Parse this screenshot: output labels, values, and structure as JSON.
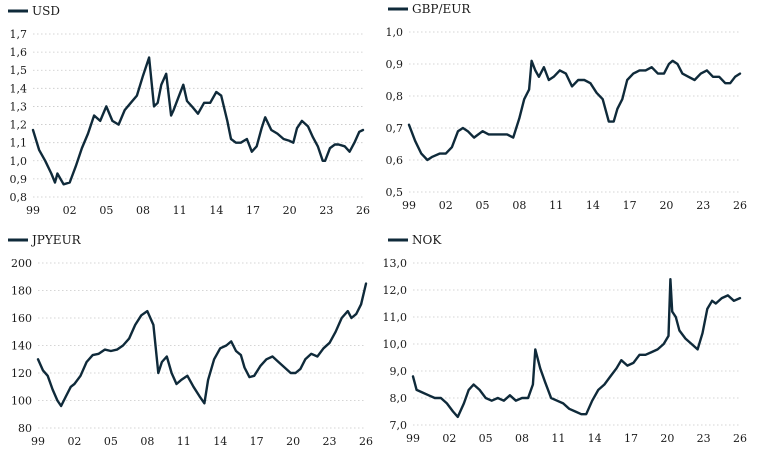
{
  "chart_data": [
    {
      "type": "line",
      "legend": "USD",
      "legend_position": "top-left",
      "grid": "horizontal-dotted",
      "color": "#0f2a3a",
      "xlim": [
        1999,
        2026
      ],
      "ylim": [
        0.8,
        1.7
      ],
      "yticks": [
        "0,8",
        "0,9",
        "1,0",
        "1,1",
        "1,2",
        "1,3",
        "1,4",
        "1,5",
        "1,6",
        "1,7"
      ],
      "xticks": [
        "99",
        "02",
        "05",
        "08",
        "11",
        "14",
        "17",
        "20",
        "23",
        "26"
      ],
      "x": [
        1999.0,
        1999.5,
        2000.0,
        2000.5,
        2000.8,
        2001.0,
        2001.5,
        2002.0,
        2002.5,
        2003.0,
        2003.5,
        2004.0,
        2004.5,
        2005.0,
        2005.5,
        2006.0,
        2006.5,
        2007.0,
        2007.5,
        2008.0,
        2008.5,
        2008.9,
        2009.2,
        2009.5,
        2009.9,
        2010.3,
        2010.5,
        2010.9,
        2011.3,
        2011.6,
        2012.0,
        2012.5,
        2013.0,
        2013.5,
        2014.0,
        2014.4,
        2014.9,
        2015.2,
        2015.6,
        2016.0,
        2016.5,
        2016.9,
        2017.3,
        2017.7,
        2018.0,
        2018.5,
        2019.0,
        2019.5,
        2020.0,
        2020.3,
        2020.6,
        2021.0,
        2021.5,
        2021.9,
        2022.3,
        2022.7,
        2022.9,
        2023.3,
        2023.7,
        2024.0,
        2024.5,
        2024.9,
        2025.3,
        2025.7,
        2026.0
      ],
      "y": [
        1.17,
        1.06,
        1.0,
        0.93,
        0.88,
        0.93,
        0.87,
        0.88,
        0.97,
        1.07,
        1.15,
        1.25,
        1.22,
        1.3,
        1.22,
        1.2,
        1.28,
        1.32,
        1.36,
        1.47,
        1.57,
        1.3,
        1.32,
        1.42,
        1.48,
        1.25,
        1.28,
        1.35,
        1.42,
        1.33,
        1.3,
        1.26,
        1.32,
        1.32,
        1.38,
        1.36,
        1.22,
        1.12,
        1.1,
        1.1,
        1.12,
        1.05,
        1.08,
        1.18,
        1.24,
        1.17,
        1.15,
        1.12,
        1.11,
        1.1,
        1.18,
        1.22,
        1.19,
        1.13,
        1.08,
        1.0,
        1.0,
        1.07,
        1.09,
        1.09,
        1.08,
        1.05,
        1.1,
        1.16,
        1.17
      ]
    },
    {
      "type": "line",
      "legend": "GBP/EUR",
      "legend_position": "top-left",
      "grid": "horizontal-dotted",
      "color": "#0f2a3a",
      "xlim": [
        1999,
        2026
      ],
      "ylim": [
        0.5,
        1.0
      ],
      "yticks": [
        "0,5",
        "0,6",
        "0,7",
        "0,8",
        "0,9",
        "1,0"
      ],
      "xticks": [
        "99",
        "02",
        "05",
        "08",
        "11",
        "14",
        "17",
        "20",
        "23",
        "26"
      ],
      "x": [
        1999.0,
        1999.5,
        2000.0,
        2000.5,
        2000.9,
        2001.5,
        2002.0,
        2002.5,
        2003.0,
        2003.4,
        2003.8,
        2004.3,
        2005.0,
        2005.5,
        2006.0,
        2006.5,
        2007.0,
        2007.5,
        2008.0,
        2008.4,
        2008.8,
        2009.0,
        2009.3,
        2009.6,
        2010.0,
        2010.4,
        2010.8,
        2011.3,
        2011.8,
        2012.3,
        2012.8,
        2013.3,
        2013.8,
        2014.3,
        2014.8,
        2015.3,
        2015.7,
        2016.0,
        2016.4,
        2016.8,
        2017.3,
        2017.8,
        2018.3,
        2018.8,
        2019.3,
        2019.8,
        2020.2,
        2020.5,
        2020.9,
        2021.3,
        2021.8,
        2022.3,
        2022.8,
        2023.3,
        2023.8,
        2024.3,
        2024.8,
        2025.2,
        2025.6,
        2026.0
      ],
      "y": [
        0.71,
        0.66,
        0.62,
        0.6,
        0.61,
        0.62,
        0.62,
        0.64,
        0.69,
        0.7,
        0.69,
        0.67,
        0.69,
        0.68,
        0.68,
        0.68,
        0.68,
        0.67,
        0.73,
        0.79,
        0.82,
        0.91,
        0.88,
        0.86,
        0.89,
        0.85,
        0.86,
        0.88,
        0.87,
        0.83,
        0.85,
        0.85,
        0.84,
        0.81,
        0.79,
        0.72,
        0.72,
        0.76,
        0.79,
        0.85,
        0.87,
        0.88,
        0.88,
        0.89,
        0.87,
        0.87,
        0.9,
        0.91,
        0.9,
        0.87,
        0.86,
        0.85,
        0.87,
        0.88,
        0.86,
        0.86,
        0.84,
        0.84,
        0.86,
        0.87
      ]
    },
    {
      "type": "line",
      "legend": "JPYEUR",
      "legend_position": "top-left",
      "grid": "horizontal-dotted",
      "color": "#0f2a3a",
      "xlim": [
        1999,
        2026
      ],
      "ylim": [
        80,
        200
      ],
      "yticks": [
        "80",
        "100",
        "120",
        "140",
        "160",
        "180",
        "200"
      ],
      "xticks": [
        "99",
        "02",
        "05",
        "08",
        "11",
        "14",
        "17",
        "20",
        "23",
        "26"
      ],
      "x": [
        1999.0,
        1999.4,
        1999.8,
        2000.2,
        2000.6,
        2000.9,
        2001.3,
        2001.7,
        2002.0,
        2002.5,
        2003.0,
        2003.5,
        2004.0,
        2004.5,
        2005.0,
        2005.5,
        2006.0,
        2006.5,
        2007.0,
        2007.5,
        2008.0,
        2008.5,
        2008.9,
        2009.2,
        2009.6,
        2010.0,
        2010.4,
        2010.8,
        2011.3,
        2011.8,
        2012.3,
        2012.7,
        2013.0,
        2013.5,
        2014.0,
        2014.5,
        2014.9,
        2015.3,
        2015.7,
        2016.0,
        2016.4,
        2016.8,
        2017.3,
        2017.8,
        2018.3,
        2018.8,
        2019.3,
        2019.8,
        2020.2,
        2020.6,
        2021.0,
        2021.5,
        2022.0,
        2022.5,
        2023.0,
        2023.5,
        2024.0,
        2024.5,
        2024.8,
        2025.2,
        2025.6,
        2026.0
      ],
      "y": [
        130,
        122,
        118,
        108,
        100,
        96,
        103,
        110,
        112,
        118,
        128,
        133,
        134,
        137,
        136,
        137,
        140,
        145,
        155,
        162,
        165,
        155,
        120,
        128,
        132,
        120,
        112,
        115,
        118,
        110,
        103,
        98,
        115,
        130,
        138,
        140,
        143,
        136,
        133,
        124,
        117,
        118,
        125,
        130,
        132,
        128,
        124,
        120,
        120,
        123,
        130,
        134,
        132,
        138,
        142,
        150,
        160,
        165,
        160,
        163,
        170,
        185
      ]
    },
    {
      "type": "line",
      "legend": "NOK",
      "legend_position": "top-left",
      "grid": "horizontal-dotted",
      "color": "#0f2a3a",
      "xlim": [
        1999,
        2026
      ],
      "ylim": [
        7.0,
        13.0
      ],
      "yticks": [
        "7,0",
        "8,0",
        "9,0",
        "10,0",
        "11,0",
        "12,0",
        "13,0"
      ],
      "xticks": [
        "99",
        "02",
        "05",
        "08",
        "11",
        "14",
        "17",
        "20",
        "23",
        "26"
      ],
      "x": [
        1999.0,
        1999.3,
        1999.8,
        2000.3,
        2000.8,
        2001.3,
        2001.8,
        2002.3,
        2002.7,
        2003.2,
        2003.6,
        2004.0,
        2004.5,
        2005.0,
        2005.5,
        2006.0,
        2006.5,
        2007.0,
        2007.5,
        2008.0,
        2008.5,
        2008.9,
        2009.1,
        2009.5,
        2009.9,
        2010.4,
        2010.9,
        2011.4,
        2011.9,
        2012.4,
        2012.9,
        2013.3,
        2013.8,
        2014.3,
        2014.8,
        2015.3,
        2015.8,
        2016.2,
        2016.7,
        2017.2,
        2017.7,
        2018.2,
        2018.7,
        2019.2,
        2019.7,
        2020.1,
        2020.25,
        2020.4,
        2020.7,
        2021.0,
        2021.5,
        2022.0,
        2022.5,
        2022.9,
        2023.3,
        2023.7,
        2024.0,
        2024.5,
        2025.0,
        2025.5,
        2026.0
      ],
      "y": [
        8.8,
        8.3,
        8.2,
        8.1,
        8.0,
        8.0,
        7.8,
        7.5,
        7.3,
        7.8,
        8.3,
        8.5,
        8.3,
        8.0,
        7.9,
        8.0,
        7.9,
        8.1,
        7.9,
        8.0,
        8.0,
        8.5,
        9.8,
        9.1,
        8.6,
        8.0,
        7.9,
        7.8,
        7.6,
        7.5,
        7.4,
        7.4,
        7.9,
        8.3,
        8.5,
        8.8,
        9.1,
        9.4,
        9.2,
        9.3,
        9.6,
        9.6,
        9.7,
        9.8,
        10.0,
        10.3,
        12.4,
        11.2,
        11.0,
        10.5,
        10.2,
        10.0,
        9.8,
        10.4,
        11.3,
        11.6,
        11.5,
        11.7,
        11.8,
        11.6,
        11.7
      ]
    }
  ]
}
